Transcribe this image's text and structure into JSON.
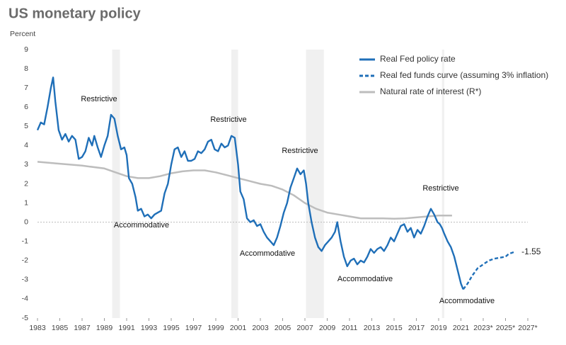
{
  "chart_data": {
    "type": "line",
    "title": "US monetary policy",
    "y_label": "Percent",
    "xlim": [
      1983,
      2027
    ],
    "ylim": [
      -5,
      9
    ],
    "yticks": [
      -5,
      -4,
      -3,
      -2,
      -1,
      0,
      1,
      2,
      3,
      4,
      5,
      6,
      7,
      8,
      9
    ],
    "xticks": [
      1983,
      1985,
      1987,
      1989,
      1991,
      1993,
      1995,
      1997,
      1999,
      2001,
      2003,
      2005,
      2007,
      2009,
      2011,
      2013,
      2015,
      2017,
      2019,
      2021,
      {
        "value": 2023,
        "label": "2023*"
      },
      {
        "value": 2025,
        "label": "2025*"
      },
      {
        "value": 2027,
        "label": "2027*"
      }
    ],
    "shaded_periods": [
      [
        1989.7,
        1990.4
      ],
      [
        2000.4,
        2001.0
      ],
      [
        2007.1,
        2008.7
      ],
      [
        2019.3,
        2019.5
      ]
    ],
    "series": [
      {
        "name": "Real Fed policy rate",
        "color": "#1f6fb8",
        "dash": false,
        "x": [
          1983.0,
          1983.3,
          1983.6,
          1983.9,
          1984.2,
          1984.4,
          1984.6,
          1984.9,
          1985.2,
          1985.5,
          1985.8,
          1986.1,
          1986.4,
          1986.7,
          1987.0,
          1987.3,
          1987.6,
          1987.9,
          1988.1,
          1988.4,
          1988.7,
          1989.0,
          1989.3,
          1989.6,
          1989.9,
          1990.2,
          1990.5,
          1990.8,
          1991.0,
          1991.2,
          1991.5,
          1991.8,
          1992.0,
          1992.3,
          1992.6,
          1992.9,
          1993.2,
          1993.5,
          1993.8,
          1994.1,
          1994.4,
          1994.7,
          1995.0,
          1995.3,
          1995.6,
          1995.9,
          1996.2,
          1996.5,
          1996.8,
          1997.1,
          1997.4,
          1997.7,
          1998.0,
          1998.3,
          1998.6,
          1998.9,
          1999.2,
          1999.5,
          1999.8,
          2000.1,
          2000.4,
          2000.7,
          2001.0,
          2001.2,
          2001.5,
          2001.8,
          2002.1,
          2002.4,
          2002.7,
          2003.0,
          2003.3,
          2003.6,
          2003.9,
          2004.2,
          2004.5,
          2004.8,
          2005.1,
          2005.4,
          2005.7,
          2006.0,
          2006.3,
          2006.6,
          2006.9,
          2007.1,
          2007.3,
          2007.6,
          2007.9,
          2008.2,
          2008.5,
          2008.8,
          2009.1,
          2009.4,
          2009.7,
          2009.9,
          2010.2,
          2010.5,
          2010.8,
          2011.1,
          2011.4,
          2011.7,
          2012.0,
          2012.3,
          2012.6,
          2012.9,
          2013.2,
          2013.5,
          2013.8,
          2014.1,
          2014.4,
          2014.7,
          2015.0,
          2015.3,
          2015.6,
          2015.9,
          2016.2,
          2016.5,
          2016.8,
          2017.1,
          2017.4,
          2017.7,
          2018.0,
          2018.3,
          2018.6,
          2018.9,
          2019.1,
          2019.3,
          2019.5,
          2019.8,
          2020.1,
          2020.4,
          2020.7,
          2021.0,
          2021.2
        ],
        "values": [
          4.8,
          5.2,
          5.1,
          6.0,
          7.0,
          7.55,
          6.3,
          4.8,
          4.3,
          4.6,
          4.2,
          4.5,
          4.3,
          3.3,
          3.4,
          3.7,
          4.4,
          4.0,
          4.5,
          3.9,
          3.4,
          4.0,
          4.5,
          5.6,
          5.4,
          4.5,
          3.8,
          3.9,
          3.5,
          2.3,
          2.0,
          1.3,
          0.6,
          0.7,
          0.3,
          0.4,
          0.2,
          0.4,
          0.5,
          0.6,
          1.5,
          2.0,
          3.0,
          3.8,
          3.9,
          3.4,
          3.7,
          3.2,
          3.2,
          3.3,
          3.7,
          3.6,
          3.8,
          4.2,
          4.3,
          3.8,
          3.7,
          4.1,
          3.9,
          4.0,
          4.5,
          4.4,
          3.0,
          1.6,
          1.2,
          0.2,
          0.0,
          0.1,
          -0.2,
          -0.1,
          -0.5,
          -0.8,
          -1.0,
          -1.2,
          -0.8,
          -0.2,
          0.5,
          1.0,
          1.8,
          2.3,
          2.8,
          2.5,
          2.7,
          2.0,
          1.0,
          0.0,
          -0.8,
          -1.3,
          -1.5,
          -1.2,
          -1.0,
          -0.8,
          -0.5,
          0.0,
          -1.0,
          -1.8,
          -2.3,
          -2.0,
          -1.9,
          -2.2,
          -2.0,
          -2.1,
          -1.8,
          -1.4,
          -1.6,
          -1.4,
          -1.3,
          -1.5,
          -1.2,
          -0.8,
          -1.0,
          -0.6,
          -0.2,
          -0.1,
          -0.5,
          -0.3,
          -0.8,
          -0.4,
          -0.6,
          -0.2,
          0.3,
          0.7,
          0.4,
          0.0,
          -0.1,
          -0.3,
          -0.6,
          -1.0,
          -1.3,
          -1.8,
          -2.5,
          -3.2,
          -3.5
        ]
      },
      {
        "name": "Real fed funds curve (assuming 3% inflation)",
        "color": "#1f6fb8",
        "dash": true,
        "x": [
          2021.2,
          2021.6,
          2022.0,
          2022.5,
          2023.0,
          2023.5,
          2024.0,
          2024.5,
          2025.0,
          2025.3,
          2025.8
        ],
        "values": [
          -3.5,
          -3.2,
          -2.8,
          -2.4,
          -2.2,
          -2.0,
          -1.9,
          -1.85,
          -1.8,
          -1.65,
          -1.55
        ]
      },
      {
        "name": "Natural rate of interest (R*)",
        "color": "#bdbdbd",
        "dash": false,
        "x": [
          1983,
          1985,
          1987,
          1989,
          1990,
          1991,
          1992,
          1993,
          1994,
          1995,
          1996,
          1997,
          1998,
          1999,
          2000,
          2001,
          2002,
          2003,
          2004,
          2005,
          2006,
          2007,
          2008,
          2009,
          2010,
          2011,
          2012,
          2013,
          2014,
          2015,
          2016,
          2017,
          2018,
          2019,
          2020.2
        ],
        "values": [
          3.15,
          3.05,
          2.95,
          2.8,
          2.6,
          2.4,
          2.3,
          2.3,
          2.4,
          2.55,
          2.65,
          2.7,
          2.7,
          2.6,
          2.45,
          2.3,
          2.15,
          2.0,
          1.9,
          1.7,
          1.4,
          1.0,
          0.7,
          0.5,
          0.4,
          0.3,
          0.2,
          0.2,
          0.2,
          0.18,
          0.2,
          0.25,
          0.3,
          0.35,
          0.35
        ]
      }
    ],
    "annotations": [
      "Restrictive",
      "Accommodative",
      "Restrictive",
      "Accommodative",
      "Restrictive",
      "Accommodative",
      "Restrictive",
      "Accommodative"
    ]
  }
}
